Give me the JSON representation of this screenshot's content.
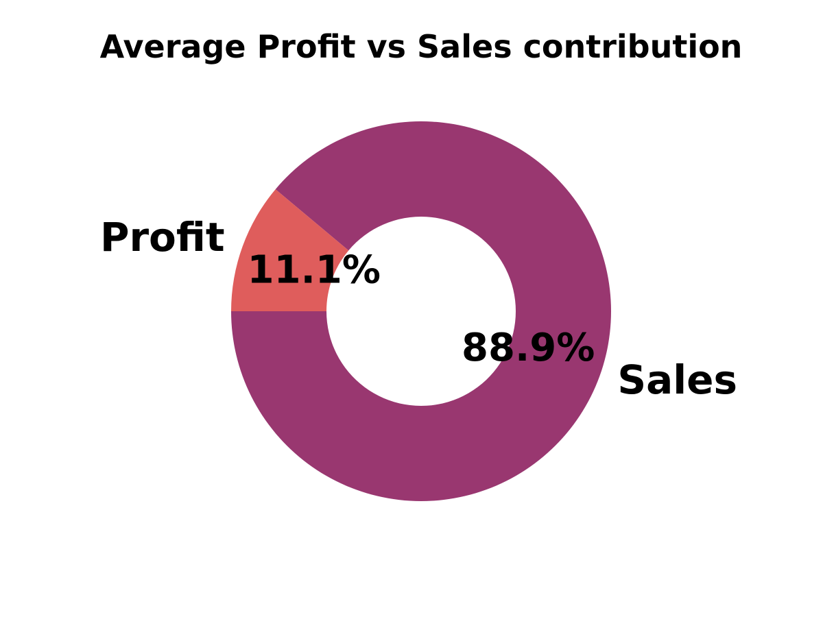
{
  "chart_data": {
    "type": "pie",
    "donut": true,
    "title": "Average Profit vs Sales contribution",
    "start_angle_deg": 180,
    "direction": "counterclockwise",
    "slices": [
      {
        "label": "Sales",
        "value": 88.9,
        "pct_label": "88.9%",
        "color": "#993770"
      },
      {
        "label": "Profit",
        "value": 11.1,
        "pct_label": "11.1%",
        "color": "#df5d5c"
      }
    ],
    "legend": "none"
  }
}
